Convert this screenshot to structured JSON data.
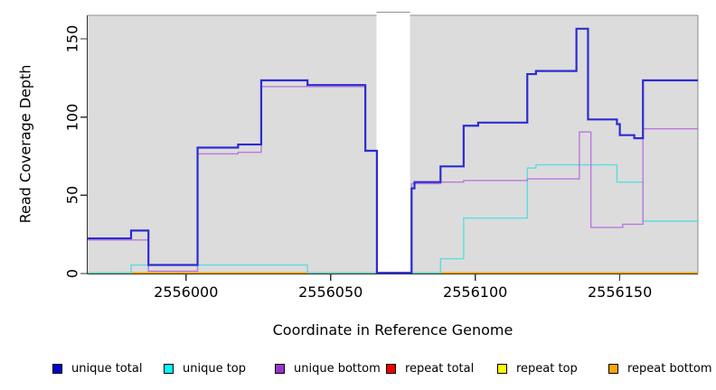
{
  "chart_data": {
    "type": "line",
    "subtype": "step-coverage",
    "xlabel": "Coordinate in Reference Genome",
    "ylabel": "Read Coverage Depth",
    "xlim": [
      2555966,
      2556177
    ],
    "ylim": [
      0,
      165
    ],
    "x_ticks": [
      2556000,
      2556050,
      2556100,
      2556150
    ],
    "y_ticks": [
      0,
      50,
      100,
      150
    ],
    "grid": false,
    "panel_bg": "#DCDCDC",
    "panel_border_color": "#8C8C8C",
    "axis_color": "#333333",
    "gap_region": {
      "from": 2556065.9,
      "to": 2556077.5,
      "fill": "#FFFFFF",
      "cap_color": "#909090"
    },
    "x_end": 2556177,
    "series": [
      {
        "name": "repeat total",
        "color": "#EE0000",
        "legend_color": "#EE0000",
        "width": 1.4,
        "steps": [
          [
            2555966,
            0
          ]
        ]
      },
      {
        "name": "repeat top",
        "color": "#FFFF00",
        "legend_color": "#FFFF00",
        "width": 1.4,
        "steps": [
          [
            2555966,
            0
          ]
        ]
      },
      {
        "name": "repeat bottom",
        "color": "#FFA500",
        "legend_color": "#FFA500",
        "width": 1.6,
        "steps": [
          [
            2555966,
            0
          ]
        ]
      },
      {
        "name": "unique top",
        "color": "#5ADCE0",
        "legend_color": "#00FFFF",
        "width": 1.4,
        "steps": [
          [
            2555966,
            0
          ],
          [
            2555981,
            5
          ],
          [
            2556042,
            0
          ],
          [
            2556088,
            9
          ],
          [
            2556096,
            35
          ],
          [
            2556118,
            67
          ],
          [
            2556121,
            69
          ],
          [
            2556149,
            58
          ],
          [
            2556158,
            33
          ]
        ]
      },
      {
        "name": "unique bottom",
        "color": "#BA77DC",
        "legend_color": "#9933CC",
        "width": 1.4,
        "steps": [
          [
            2555966,
            21
          ],
          [
            2555987,
            1
          ],
          [
            2556004,
            76
          ],
          [
            2556018,
            77
          ],
          [
            2556026,
            119
          ],
          [
            2556062,
            78
          ],
          [
            2556066,
            0
          ],
          [
            2556078,
            57
          ],
          [
            2556088,
            58
          ],
          [
            2556096,
            59
          ],
          [
            2556118,
            60
          ],
          [
            2556136,
            90
          ],
          [
            2556140,
            29
          ],
          [
            2556151,
            31
          ],
          [
            2556158,
            92
          ]
        ]
      },
      {
        "name": "unique total",
        "color": "#2C2CD1",
        "legend_color": "#0000CC",
        "width": 2.2,
        "steps": [
          [
            2555966,
            22
          ],
          [
            2555981,
            27
          ],
          [
            2555987,
            5
          ],
          [
            2556004,
            80
          ],
          [
            2556018,
            82
          ],
          [
            2556026,
            123
          ],
          [
            2556042,
            120
          ],
          [
            2556062,
            78
          ],
          [
            2556066,
            0
          ],
          [
            2556078,
            54
          ],
          [
            2556079,
            58
          ],
          [
            2556088,
            68
          ],
          [
            2556096,
            94
          ],
          [
            2556101,
            96
          ],
          [
            2556118,
            127
          ],
          [
            2556121,
            129
          ],
          [
            2556135,
            156
          ],
          [
            2556139,
            98
          ],
          [
            2556149,
            95
          ],
          [
            2556150,
            88
          ],
          [
            2556155,
            86
          ],
          [
            2556158,
            123
          ]
        ]
      }
    ],
    "baseline_blend_segments": [
      {
        "from": 2555966,
        "to": 2555981,
        "color": "#93C59B"
      },
      {
        "from": 2556042,
        "to": 2556066,
        "color": "#93C59B"
      },
      {
        "from": 2556078,
        "to": 2556088,
        "color": "#93C59B"
      }
    ],
    "legend": {
      "position": "bottom",
      "entries": [
        {
          "label": "unique total",
          "color": "#0000CC"
        },
        {
          "label": "unique top",
          "color": "#00FFFF"
        },
        {
          "label": "unique bottom",
          "color": "#9933CC"
        },
        {
          "label": "repeat total",
          "color": "#EE0000"
        },
        {
          "label": "repeat top",
          "color": "#FFFF00"
        },
        {
          "label": "repeat bottom",
          "color": "#FFA500"
        }
      ]
    }
  }
}
